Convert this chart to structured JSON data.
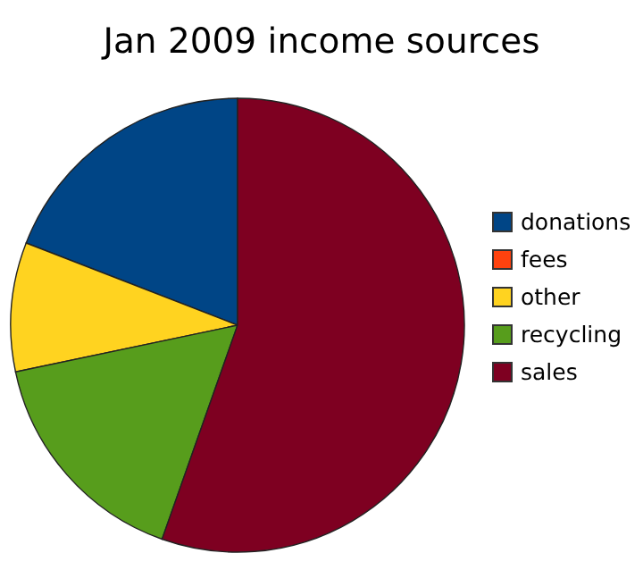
{
  "chart_data": {
    "type": "pie",
    "title": "Jan 2009 income sources",
    "categories": [
      "donations",
      "fees",
      "other",
      "recycling",
      "sales"
    ],
    "values": [
      19.1,
      0,
      9.2,
      16.3,
      55.4
    ],
    "colors": [
      "#004586",
      "#ff420e",
      "#ffd320",
      "#579d1c",
      "#7e0021"
    ],
    "legend": "right"
  }
}
